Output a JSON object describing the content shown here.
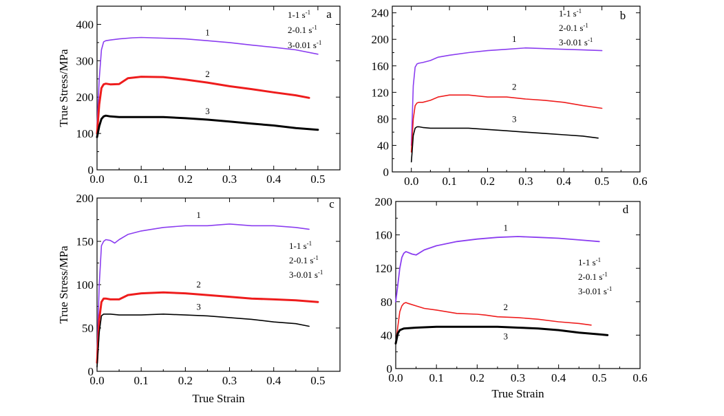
{
  "figure": {
    "x_axis_title": "True Strain",
    "y_axis_title": "True Stress/MPa"
  },
  "chart_data": [
    {
      "id": "a",
      "type": "line",
      "panel_label": "a",
      "ylabel": "True Stress/MPa",
      "xlabel": "",
      "xlim": [
        0.0,
        0.55
      ],
      "ylim": [
        0,
        450
      ],
      "xticks": [
        0.0,
        0.1,
        0.2,
        0.3,
        0.4,
        0.5
      ],
      "xtick_labels": [
        "0.0",
        "0.1",
        "0.2",
        "0.3",
        "0.4",
        "0.5"
      ],
      "yticks": [
        0,
        100,
        200,
        300,
        400
      ],
      "ytick_labels": [
        "0",
        "100",
        "200",
        "300",
        "400"
      ],
      "legend": {
        "position": "top-right",
        "entries": [
          {
            "prefix": "1-1",
            "unit": "s",
            "exp": "-1"
          },
          {
            "prefix": "2-0.1",
            "unit": "s",
            "exp": "-1"
          },
          {
            "prefix": "3-0.01",
            "unit": "s",
            "exp": "-1"
          }
        ]
      },
      "series": [
        {
          "label": "1",
          "color": "#8a3cf0",
          "width": 1.6,
          "label_at": [
            0.25,
            370
          ],
          "x": [
            0.0,
            0.005,
            0.01,
            0.015,
            0.02,
            0.03,
            0.05,
            0.08,
            0.1,
            0.15,
            0.2,
            0.25,
            0.3,
            0.35,
            0.4,
            0.45,
            0.5
          ],
          "y": [
            120,
            250,
            330,
            352,
            355,
            357,
            360,
            363,
            364,
            362,
            360,
            355,
            350,
            343,
            337,
            330,
            318
          ]
        },
        {
          "label": "2",
          "color": "#ee1c1c",
          "width": 3,
          "label_at": [
            0.25,
            255
          ],
          "x": [
            0.0,
            0.005,
            0.01,
            0.015,
            0.02,
            0.03,
            0.05,
            0.07,
            0.1,
            0.15,
            0.2,
            0.25,
            0.3,
            0.35,
            0.4,
            0.45,
            0.48
          ],
          "y": [
            100,
            180,
            225,
            235,
            237,
            235,
            236,
            252,
            256,
            255,
            248,
            240,
            230,
            222,
            213,
            205,
            198
          ]
        },
        {
          "label": "3",
          "color": "#000000",
          "width": 3,
          "label_at": [
            0.25,
            153
          ],
          "x": [
            0.0,
            0.005,
            0.01,
            0.015,
            0.02,
            0.03,
            0.05,
            0.1,
            0.15,
            0.2,
            0.25,
            0.3,
            0.35,
            0.4,
            0.45,
            0.5
          ],
          "y": [
            90,
            120,
            140,
            147,
            149,
            147,
            145,
            145,
            145,
            142,
            138,
            133,
            127,
            122,
            115,
            110
          ]
        }
      ]
    },
    {
      "id": "b",
      "type": "line",
      "panel_label": "b",
      "ylabel": "",
      "xlabel": "",
      "xlim": [
        -0.05,
        0.6
      ],
      "ylim": [
        0,
        250
      ],
      "xticks": [
        0.0,
        0.1,
        0.2,
        0.3,
        0.4,
        0.5,
        0.6
      ],
      "xtick_labels": [
        "0.0",
        "0.1",
        "0.2",
        "0.3",
        "0.4",
        "0.5",
        "0.6"
      ],
      "yticks": [
        0,
        40,
        80,
        120,
        160,
        200,
        240
      ],
      "ytick_labels": [
        "0",
        "40",
        "80",
        "120",
        "160",
        "200",
        "240"
      ],
      "legend": {
        "position": "top-right",
        "entries": [
          {
            "prefix": "1-1",
            "unit": "s",
            "exp": "-1"
          },
          {
            "prefix": "2-0.1",
            "unit": "s",
            "exp": "-1"
          },
          {
            "prefix": "3-0.01",
            "unit": "s",
            "exp": "-1"
          }
        ]
      },
      "series": [
        {
          "label": "1",
          "color": "#8a3cf0",
          "width": 1.6,
          "label_at": [
            0.27,
            196
          ],
          "x": [
            0.0,
            0.005,
            0.01,
            0.015,
            0.02,
            0.03,
            0.05,
            0.07,
            0.1,
            0.15,
            0.2,
            0.25,
            0.3,
            0.35,
            0.4,
            0.45,
            0.5
          ],
          "y": [
            40,
            130,
            158,
            163,
            164,
            165,
            168,
            173,
            176,
            180,
            183,
            185,
            187,
            186,
            185,
            184,
            183
          ]
        },
        {
          "label": "2",
          "color": "#ee1c1c",
          "width": 1.6,
          "label_at": [
            0.27,
            124
          ],
          "x": [
            0.0,
            0.005,
            0.01,
            0.015,
            0.02,
            0.03,
            0.05,
            0.07,
            0.1,
            0.15,
            0.2,
            0.25,
            0.3,
            0.35,
            0.4,
            0.45,
            0.5
          ],
          "y": [
            30,
            80,
            100,
            104,
            105,
            105,
            108,
            113,
            116,
            116,
            113,
            113,
            110,
            108,
            105,
            100,
            96
          ]
        },
        {
          "label": "3",
          "color": "#000000",
          "width": 1.6,
          "label_at": [
            0.27,
            75
          ],
          "x": [
            0.0,
            0.002,
            0.005,
            0.01,
            0.015,
            0.02,
            0.03,
            0.05,
            0.1,
            0.15,
            0.2,
            0.25,
            0.3,
            0.35,
            0.4,
            0.45,
            0.49
          ],
          "y": [
            15,
            30,
            55,
            66,
            68,
            68,
            67,
            66,
            66,
            66,
            64,
            62,
            60,
            58,
            56,
            54,
            51
          ]
        }
      ]
    },
    {
      "id": "c",
      "type": "line",
      "panel_label": "c",
      "ylabel": "True Stress/MPa",
      "xlabel": "True Strain",
      "xlim": [
        0.0,
        0.55
      ],
      "ylim": [
        0,
        200
      ],
      "xticks": [
        0.0,
        0.1,
        0.2,
        0.3,
        0.4,
        0.5
      ],
      "xtick_labels": [
        "0.0",
        "0.1",
        "0.2",
        "0.3",
        "0.4",
        "0.5"
      ],
      "yticks": [
        0,
        50,
        100,
        150,
        200
      ],
      "ytick_labels": [
        "0",
        "50",
        "100",
        "150",
        "200"
      ],
      "legend": {
        "position": "middle-right",
        "entries": [
          {
            "prefix": "1-1",
            "unit": "s",
            "exp": "-1"
          },
          {
            "prefix": "2-0.1",
            "unit": "s",
            "exp": "-1"
          },
          {
            "prefix": "3-0.01",
            "unit": "s",
            "exp": "-1"
          }
        ]
      },
      "series": [
        {
          "label": "1",
          "color": "#8a3cf0",
          "width": 1.6,
          "label_at": [
            0.23,
            177
          ],
          "x": [
            0.0,
            0.005,
            0.01,
            0.015,
            0.02,
            0.03,
            0.04,
            0.05,
            0.07,
            0.1,
            0.15,
            0.2,
            0.25,
            0.3,
            0.35,
            0.4,
            0.45,
            0.48
          ],
          "y": [
            20,
            100,
            145,
            150,
            152,
            151,
            148,
            152,
            158,
            162,
            166,
            168,
            168,
            170,
            168,
            168,
            166,
            164
          ]
        },
        {
          "label": "2",
          "color": "#ee1c1c",
          "width": 3,
          "label_at": [
            0.23,
            97
          ],
          "x": [
            0.0,
            0.005,
            0.01,
            0.015,
            0.02,
            0.03,
            0.05,
            0.07,
            0.1,
            0.15,
            0.2,
            0.25,
            0.3,
            0.35,
            0.4,
            0.45,
            0.5
          ],
          "y": [
            10,
            60,
            80,
            84,
            84,
            83,
            83,
            88,
            90,
            91,
            90,
            88,
            86,
            84,
            83,
            82,
            80
          ]
        },
        {
          "label": "3",
          "color": "#000000",
          "width": 1.6,
          "label_at": [
            0.23,
            71
          ],
          "x": [
            0.0,
            0.005,
            0.01,
            0.015,
            0.02,
            0.03,
            0.05,
            0.1,
            0.15,
            0.2,
            0.25,
            0.3,
            0.35,
            0.4,
            0.45,
            0.48
          ],
          "y": [
            5,
            45,
            64,
            66,
            66,
            66,
            65,
            65,
            66,
            65,
            64,
            62,
            60,
            57,
            55,
            52
          ]
        }
      ]
    },
    {
      "id": "d",
      "type": "line",
      "panel_label": "d",
      "ylabel": "",
      "xlabel": "True Strain",
      "xlim": [
        0.0,
        0.6
      ],
      "ylim": [
        0,
        200
      ],
      "xticks": [
        0.0,
        0.1,
        0.2,
        0.3,
        0.4,
        0.5,
        0.6
      ],
      "xtick_labels": [
        "0.0",
        "0.1",
        "0.2",
        "0.3",
        "0.4",
        "0.5",
        "0.6"
      ],
      "yticks": [
        0,
        40,
        80,
        120,
        160,
        200
      ],
      "ytick_labels": [
        "0",
        "40",
        "80",
        "120",
        "160",
        "200"
      ],
      "legend": {
        "position": "middle-right",
        "entries": [
          {
            "prefix": "1-1",
            "unit": "s",
            "exp": "-1"
          },
          {
            "prefix": "2-0.1",
            "unit": "s",
            "exp": "-1"
          },
          {
            "prefix": "3-0.01",
            "unit": "s",
            "exp": "-1"
          }
        ]
      },
      "series": [
        {
          "label": "1",
          "color": "#8a3cf0",
          "width": 1.8,
          "label_at": [
            0.27,
            165
          ],
          "x": [
            0.0,
            0.005,
            0.01,
            0.015,
            0.02,
            0.025,
            0.03,
            0.04,
            0.05,
            0.07,
            0.1,
            0.15,
            0.2,
            0.25,
            0.3,
            0.35,
            0.4,
            0.45,
            0.5
          ],
          "y": [
            80,
            100,
            120,
            133,
            138,
            140,
            139,
            137,
            136,
            142,
            147,
            152,
            155,
            157,
            158,
            157,
            156,
            154,
            152
          ]
        },
        {
          "label": "2",
          "color": "#ee1c1c",
          "width": 1.6,
          "label_at": [
            0.27,
            70
          ],
          "x": [
            0.0,
            0.005,
            0.01,
            0.015,
            0.02,
            0.025,
            0.03,
            0.05,
            0.07,
            0.1,
            0.15,
            0.2,
            0.22,
            0.25,
            0.3,
            0.35,
            0.4,
            0.45,
            0.48
          ],
          "y": [
            30,
            50,
            68,
            75,
            78,
            79,
            78,
            75,
            72,
            70,
            66,
            65,
            64,
            62,
            61,
            59,
            56,
            54,
            52
          ]
        },
        {
          "label": "3",
          "color": "#000000",
          "width": 3,
          "label_at": [
            0.27,
            35
          ],
          "x": [
            0.0,
            0.005,
            0.01,
            0.015,
            0.02,
            0.05,
            0.1,
            0.15,
            0.2,
            0.25,
            0.3,
            0.35,
            0.4,
            0.45,
            0.5,
            0.52
          ],
          "y": [
            30,
            42,
            46,
            47,
            48,
            49,
            50,
            50,
            50,
            50,
            49,
            48,
            46,
            43,
            41,
            40
          ]
        }
      ]
    }
  ]
}
